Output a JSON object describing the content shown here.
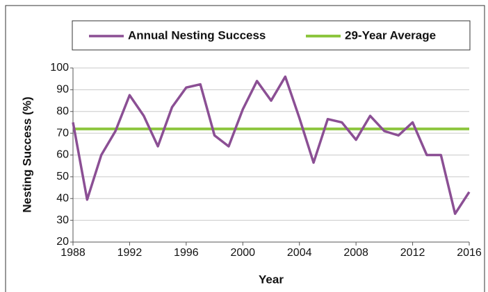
{
  "chart_data": {
    "type": "line",
    "x": [
      1988,
      1989,
      1990,
      1991,
      1992,
      1993,
      1994,
      1995,
      1996,
      1997,
      1998,
      1999,
      2000,
      2001,
      2002,
      2003,
      2004,
      2005,
      2006,
      2007,
      2008,
      2009,
      2010,
      2011,
      2012,
      2013,
      2014,
      2015,
      2016
    ],
    "series": [
      {
        "name": "Annual Nesting Success",
        "color": "#8b4f94",
        "values": [
          75,
          39.5,
          60,
          71,
          87.5,
          78,
          64,
          82,
          91,
          92.5,
          69,
          64,
          81,
          94,
          85,
          96,
          77,
          56.5,
          76.5,
          75,
          67,
          78,
          71,
          69,
          75,
          60,
          60,
          33,
          43
        ]
      }
    ],
    "average": {
      "name": "29-Year Average",
      "color": "#8dc63f",
      "value": 72
    },
    "xlabel": "Year",
    "ylabel": "Nesting Success (%)",
    "xlim": [
      1988,
      2016
    ],
    "xticks": [
      1988,
      1992,
      1996,
      2000,
      2004,
      2008,
      2012,
      2016
    ],
    "ylim": [
      20,
      100
    ],
    "yticks": [
      20,
      30,
      40,
      50,
      60,
      70,
      80,
      90,
      100
    ],
    "grid": true
  }
}
